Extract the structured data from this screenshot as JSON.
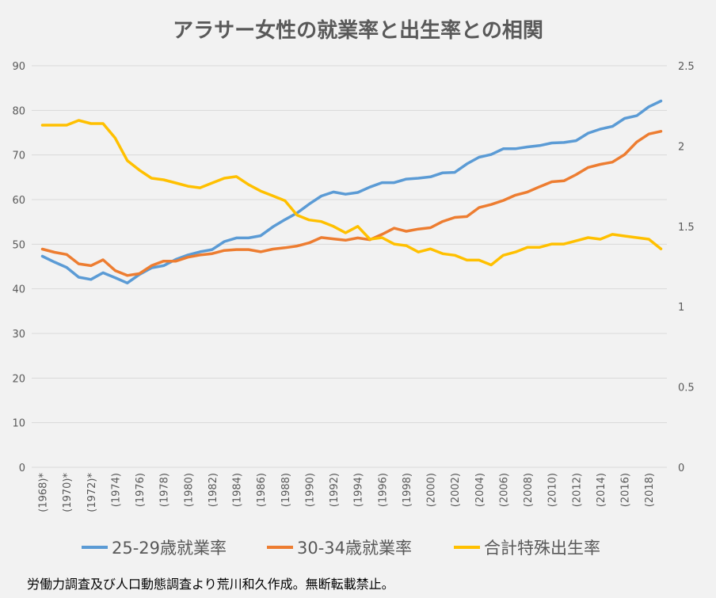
{
  "title": "アラサー女性の就業率と出生率との相関",
  "footnote": "労働力調査及び人口動態調査より荒川和久作成。無断転載禁止。",
  "chart_data": {
    "type": "line",
    "title": "アラサー女性の就業率と出生率との相関",
    "x": [
      1968,
      1969,
      1970,
      1971,
      1972,
      1973,
      1974,
      1975,
      1976,
      1977,
      1978,
      1979,
      1980,
      1981,
      1982,
      1983,
      1984,
      1985,
      1986,
      1987,
      1988,
      1989,
      1990,
      1991,
      1992,
      1993,
      1994,
      1995,
      1996,
      1997,
      1998,
      1999,
      2000,
      2001,
      2002,
      2003,
      2004,
      2005,
      2006,
      2007,
      2008,
      2009,
      2010,
      2011,
      2012,
      2013,
      2014,
      2015,
      2016,
      2017,
      2018,
      2019
    ],
    "x_tick_labels": [
      "(1968)*",
      "(1970)*",
      "(1972)*",
      "(1974)",
      "(1976)",
      "(1978)",
      "(1980)",
      "(1982)",
      "(1984)",
      "(1986)",
      "(1988)",
      "(1990)",
      "(1992)",
      "(1994)",
      "(1996)",
      "(1998)",
      "(2000)",
      "(2002)",
      "(2004)",
      "(2006)",
      "(2008)",
      "(2010)",
      "(2012)",
      "(2014)",
      "(2016)",
      "(2018)"
    ],
    "y_left": {
      "range": [
        0,
        90
      ],
      "ticks": [
        "0",
        "10",
        "20",
        "30",
        "40",
        "50",
        "60",
        "70",
        "80",
        "90"
      ]
    },
    "y_right": {
      "range": [
        0,
        2.5
      ],
      "ticks": [
        "0",
        "0.5",
        "1",
        "1.5",
        "2",
        "2.5"
      ]
    },
    "grid": true,
    "legend_position": "bottom",
    "series": [
      {
        "name": "25-29歳就業率",
        "axis": "left",
        "color": "#5b9bd5",
        "values": [
          47.3,
          46.0,
          44.8,
          42.6,
          42.1,
          43.6,
          42.5,
          41.3,
          43.2,
          44.7,
          45.2,
          46.6,
          47.6,
          48.3,
          48.8,
          50.6,
          51.4,
          51.4,
          51.9,
          53.9,
          55.5,
          57.0,
          59.0,
          60.8,
          61.7,
          61.2,
          61.6,
          62.8,
          63.8,
          63.8,
          64.6,
          64.8,
          65.1,
          66.0,
          66.1,
          68.0,
          69.5,
          70.1,
          71.4,
          71.4,
          71.8,
          72.1,
          72.7,
          72.8,
          73.2,
          74.9,
          75.8,
          76.4,
          78.2,
          78.8,
          80.8,
          82.1
        ]
      },
      {
        "name": "30-34歳就業率",
        "axis": "left",
        "color": "#ed7d31",
        "values": [
          48.9,
          48.2,
          47.7,
          45.6,
          45.2,
          46.5,
          44.1,
          43.0,
          43.4,
          45.2,
          46.2,
          46.2,
          47.1,
          47.6,
          47.9,
          48.6,
          48.8,
          48.8,
          48.3,
          48.9,
          49.2,
          49.6,
          50.3,
          51.5,
          51.2,
          50.9,
          51.4,
          51.0,
          52.2,
          53.6,
          52.9,
          53.4,
          53.7,
          55.1,
          56.0,
          56.2,
          58.2,
          58.9,
          59.8,
          61.0,
          61.7,
          62.9,
          64.0,
          64.2,
          65.6,
          67.2,
          67.9,
          68.4,
          70.1,
          72.9,
          74.7,
          75.3
        ]
      },
      {
        "name": "合計特殊出生率",
        "axis": "right",
        "color": "#ffc000",
        "values": [
          2.13,
          2.13,
          2.13,
          2.16,
          2.14,
          2.14,
          2.05,
          1.91,
          1.85,
          1.8,
          1.79,
          1.77,
          1.75,
          1.74,
          1.77,
          1.8,
          1.81,
          1.76,
          1.72,
          1.69,
          1.66,
          1.57,
          1.54,
          1.53,
          1.5,
          1.46,
          1.5,
          1.42,
          1.43,
          1.39,
          1.38,
          1.34,
          1.36,
          1.33,
          1.32,
          1.29,
          1.29,
          1.26,
          1.32,
          1.34,
          1.37,
          1.37,
          1.39,
          1.39,
          1.41,
          1.43,
          1.42,
          1.45,
          1.44,
          1.43,
          1.42,
          1.36
        ]
      }
    ]
  }
}
